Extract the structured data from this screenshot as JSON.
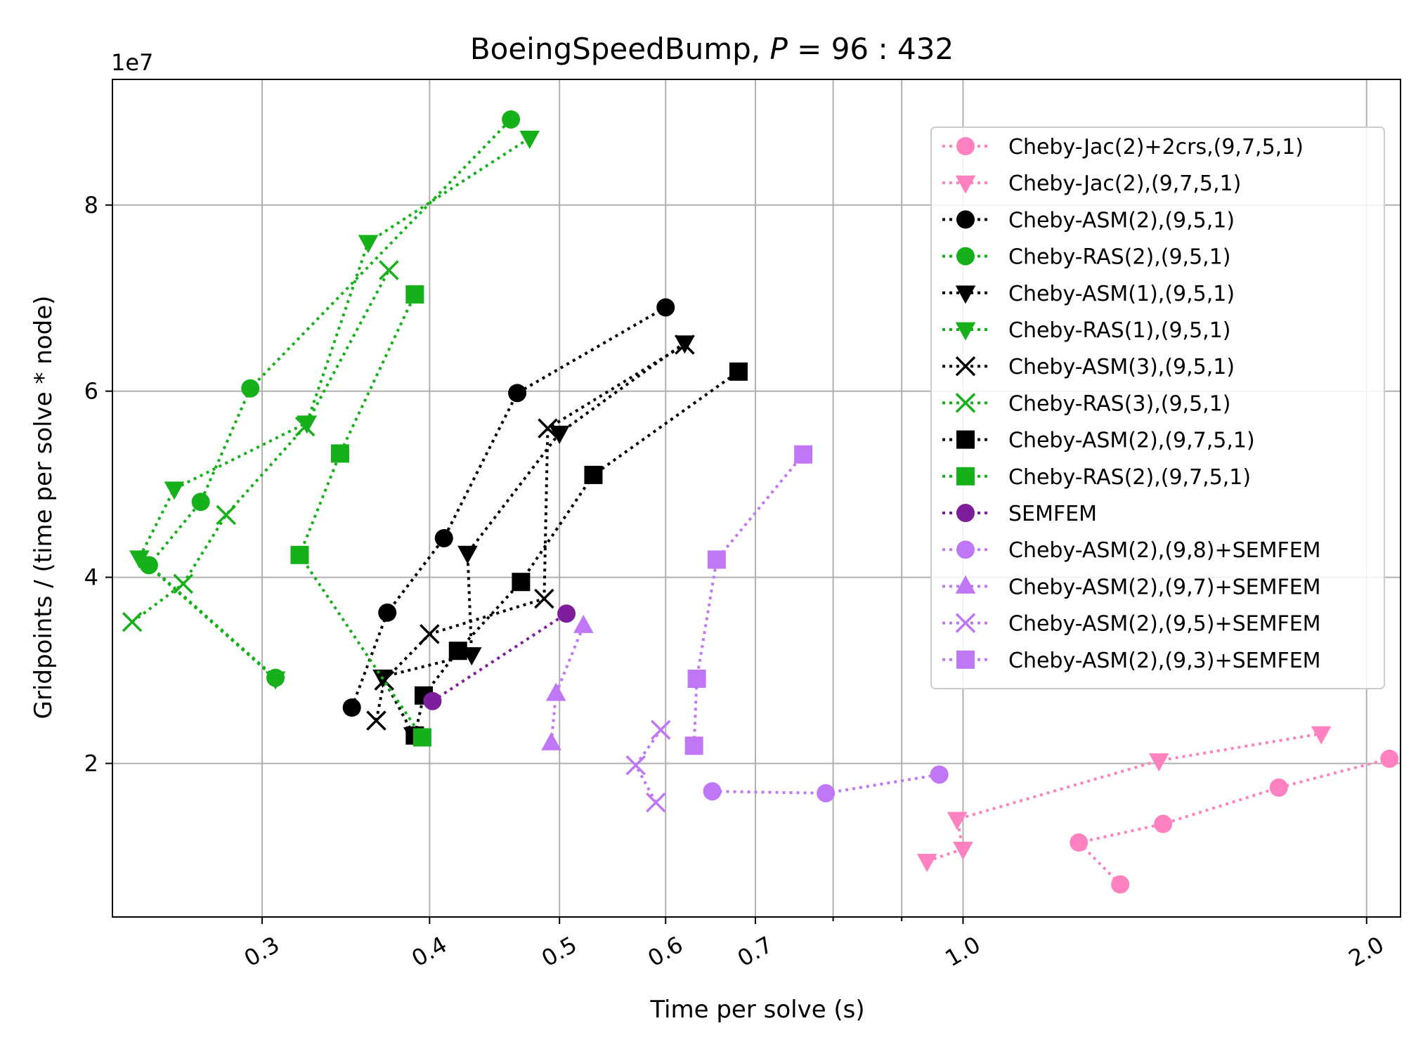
{
  "chart_data": {
    "type": "scatter",
    "title": "BoeingSpeedBump, P = 96 : 432",
    "title_parts": {
      "prefix": "BoeingSpeedBump, ",
      "var": "P",
      "rest": " = 96 : 432"
    },
    "xlabel": "Time per solve (s)",
    "ylabel": "Gridpoints / (time per solve * node)",
    "y_offset_label": "1e7",
    "x_scale": "log",
    "xlim": [
      0.232,
      2.12
    ],
    "ylim": [
      3500000,
      93500000
    ],
    "x_ticks": [
      {
        "value": 0.3,
        "label": "0.3"
      },
      {
        "value": 0.4,
        "label": "0.4"
      },
      {
        "value": 0.5,
        "label": "0.5"
      },
      {
        "value": 0.6,
        "label": "0.6"
      },
      {
        "value": 0.7,
        "label": "0.7"
      },
      {
        "value": 1.0,
        "label": "1.0"
      },
      {
        "value": 2.0,
        "label": "2.0"
      }
    ],
    "x_minor_gridlines": [
      0.8,
      0.9
    ],
    "y_ticks": [
      {
        "value": 20000000,
        "label": "2"
      },
      {
        "value": 40000000,
        "label": "4"
      },
      {
        "value": 60000000,
        "label": "6"
      },
      {
        "value": 80000000,
        "label": "8"
      }
    ],
    "grid": true,
    "legend_position": "upper right",
    "series": [
      {
        "name": "Cheby-Jac(2)+2crs,(9,7,5,1)",
        "color": "#ff81c0",
        "marker": "circle",
        "points": [
          [
            1.31,
            7000000
          ],
          [
            1.22,
            11500000
          ],
          [
            1.41,
            13500000
          ],
          [
            1.72,
            17400000
          ],
          [
            2.08,
            20500000
          ]
        ]
      },
      {
        "name": "Cheby-Jac(2),(9,7,5,1)",
        "color": "#ff81c0",
        "marker": "triangle-down",
        "points": [
          [
            0.94,
            9500000
          ],
          [
            1.0,
            10800000
          ],
          [
            0.99,
            14000000
          ],
          [
            1.4,
            20300000
          ],
          [
            1.85,
            23200000
          ]
        ]
      },
      {
        "name": "Cheby-ASM(2),(9,5,1)",
        "color": "#000000",
        "marker": "circle",
        "points": [
          [
            0.35,
            26000000
          ],
          [
            0.372,
            36200000
          ],
          [
            0.41,
            44200000
          ],
          [
            0.465,
            59800000
          ],
          [
            0.6,
            69000000
          ]
        ]
      },
      {
        "name": "Cheby-RAS(2),(9,5,1)",
        "color": "#15b01a",
        "marker": "circle",
        "points": [
          [
            0.307,
            29200000
          ],
          [
            0.247,
            41300000
          ],
          [
            0.27,
            48100000
          ],
          [
            0.294,
            60300000
          ],
          [
            0.46,
            89200000
          ]
        ]
      },
      {
        "name": "Cheby-ASM(1),(9,5,1)",
        "color": "#000000",
        "marker": "triangle-down",
        "points": [
          [
            0.389,
            23100000
          ],
          [
            0.369,
            29300000
          ],
          [
            0.43,
            31700000
          ],
          [
            0.427,
            42600000
          ],
          [
            0.5,
            55500000
          ],
          [
            0.62,
            65200000
          ]
        ]
      },
      {
        "name": "Cheby-RAS(1),(9,5,1)",
        "color": "#15b01a",
        "marker": "triangle-down",
        "points": [
          [
            0.307,
            29100000
          ],
          [
            0.243,
            42100000
          ],
          [
            0.258,
            49500000
          ],
          [
            0.324,
            56600000
          ],
          [
            0.36,
            76000000
          ],
          [
            0.475,
            87200000
          ]
        ]
      },
      {
        "name": "Cheby-ASM(3),(9,5,1)",
        "color": "#000000",
        "marker": "x",
        "points": [
          [
            0.365,
            24600000
          ],
          [
            0.37,
            28900000
          ],
          [
            0.4,
            33900000
          ],
          [
            0.487,
            37700000
          ],
          [
            0.49,
            56000000
          ],
          [
            0.62,
            65000000
          ]
        ]
      },
      {
        "name": "Cheby-RAS(3),(9,5,1)",
        "color": "#15b01a",
        "marker": "x",
        "points": [
          [
            0.24,
            35200000
          ],
          [
            0.262,
            39300000
          ],
          [
            0.282,
            46700000
          ],
          [
            0.323,
            56200000
          ],
          [
            0.373,
            73000000
          ]
        ]
      },
      {
        "name": "Cheby-ASM(2),(9,7,5,1)",
        "color": "#000000",
        "marker": "square",
        "points": [
          [
            0.39,
            23000000
          ],
          [
            0.396,
            27300000
          ],
          [
            0.42,
            32100000
          ],
          [
            0.468,
            39500000
          ],
          [
            0.53,
            51000000
          ],
          [
            0.68,
            62100000
          ]
        ]
      },
      {
        "name": "Cheby-RAS(2),(9,7,5,1)",
        "color": "#15b01a",
        "marker": "square",
        "points": [
          [
            0.395,
            22800000
          ],
          [
            0.32,
            42400000
          ],
          [
            0.343,
            53300000
          ],
          [
            0.39,
            70400000
          ]
        ]
      },
      {
        "name": "SEMFEM",
        "color": "#7e1e9c",
        "marker": "circle",
        "points": [
          [
            0.402,
            26700000
          ],
          [
            0.506,
            36100000
          ]
        ]
      },
      {
        "name": "Cheby-ASM(2),(9,8)+SEMFEM",
        "color": "#bf77f6",
        "marker": "circle",
        "points": [
          [
            0.65,
            17000000
          ],
          [
            0.79,
            16800000
          ],
          [
            0.96,
            18800000
          ]
        ]
      },
      {
        "name": "Cheby-ASM(2),(9,7)+SEMFEM",
        "color": "#bf77f6",
        "marker": "triangle-up",
        "points": [
          [
            0.493,
            22200000
          ],
          [
            0.497,
            27500000
          ],
          [
            0.521,
            34800000
          ]
        ]
      },
      {
        "name": "Cheby-ASM(2),(9,5)+SEMFEM",
        "color": "#bf77f6",
        "marker": "x",
        "points": [
          [
            0.59,
            15800000
          ],
          [
            0.57,
            19800000
          ],
          [
            0.595,
            23600000
          ]
        ]
      },
      {
        "name": "Cheby-ASM(2),(9,3)+SEMFEM",
        "color": "#bf77f6",
        "marker": "square",
        "points": [
          [
            0.63,
            21900000
          ],
          [
            0.633,
            29100000
          ],
          [
            0.655,
            41900000
          ],
          [
            0.76,
            53200000
          ]
        ]
      }
    ]
  }
}
